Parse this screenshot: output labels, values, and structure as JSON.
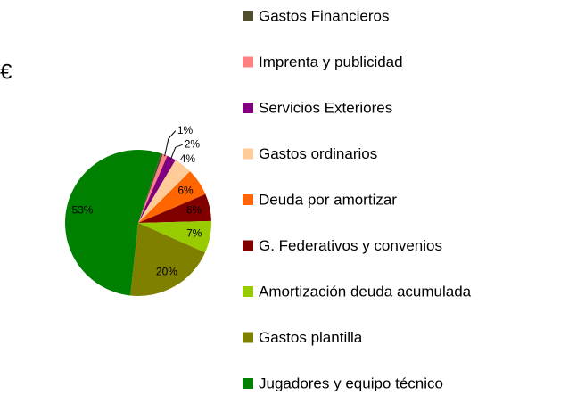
{
  "chart_data": {
    "type": "pie",
    "title": "€",
    "categories": [
      "Gastos Financieros",
      "Imprenta y publicidad",
      "Servicios Exteriores",
      "Gastos ordinarios",
      "Deuda por amortizar",
      "G. Federativos  y convenios",
      "Amortización deuda acumulada",
      "Gastos plantilla",
      "Jugadores y equipo técnico"
    ],
    "values": [
      0.5,
      1,
      2,
      4,
      6,
      6,
      7,
      20,
      53
    ],
    "value_labels": [
      null,
      "1%",
      "2%",
      "4%",
      "6%",
      "6%",
      "7%",
      "20%",
      "53%"
    ],
    "colors": [
      "#4f4f2f",
      "#ff8080",
      "#800080",
      "#ffcc99",
      "#ff6600",
      "#800000",
      "#99cc00",
      "#808000",
      "#008000"
    ],
    "legend": "right"
  }
}
